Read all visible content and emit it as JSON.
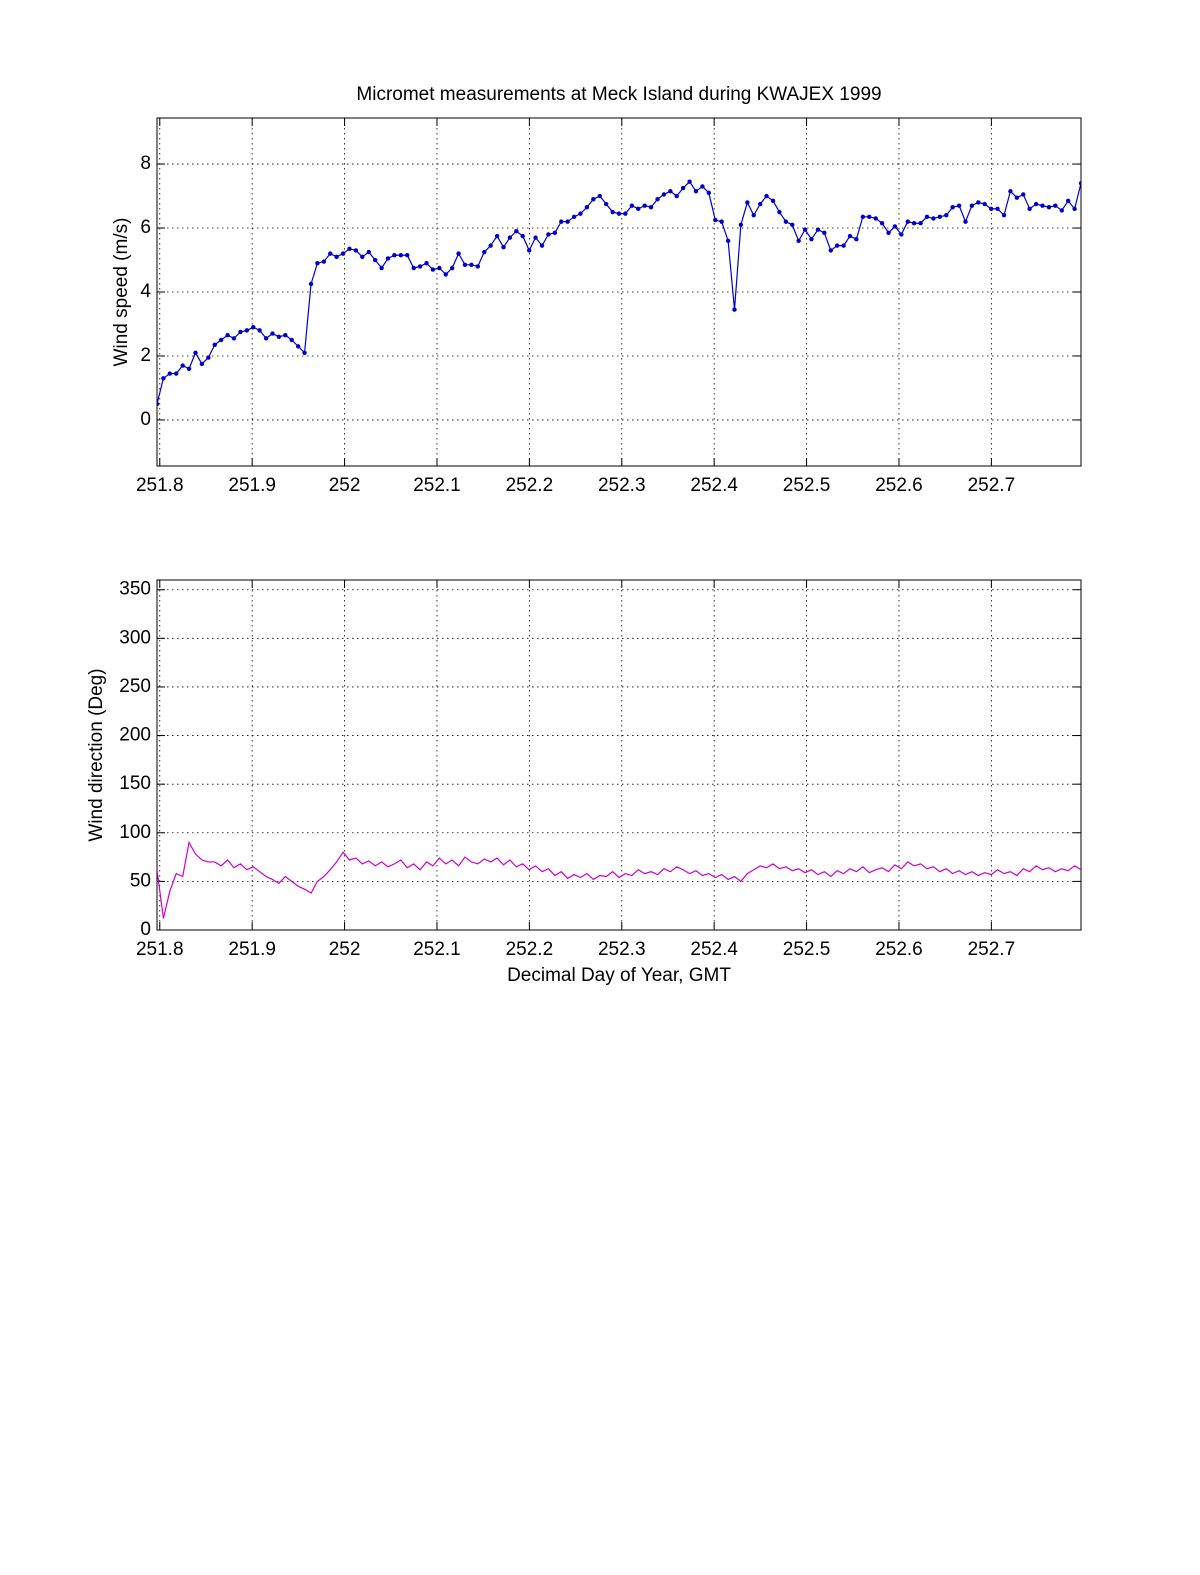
{
  "chart_data": [
    {
      "type": "line",
      "title": "Micromet measurements at Meck Island during KWAJEX 1999",
      "ylabel": "Wind speed (m/s)",
      "x": [
        251.797,
        251.8039,
        251.8109,
        251.8178,
        251.8248,
        251.8317,
        251.8387,
        251.8456,
        251.8526,
        251.8595,
        251.8664,
        251.8734,
        251.8803,
        251.8873,
        251.8942,
        251.9012,
        251.9081,
        251.9151,
        251.922,
        251.9289,
        251.9359,
        251.9428,
        251.9498,
        251.9567,
        251.9637,
        251.9706,
        251.9776,
        251.9845,
        251.9914,
        251.9984,
        252.0053,
        252.0123,
        252.0192,
        252.0262,
        252.0331,
        252.0401,
        252.047,
        252.0539,
        252.0609,
        252.0678,
        252.0748,
        252.0817,
        252.0887,
        252.0956,
        252.1026,
        252.1095,
        252.1164,
        252.1234,
        252.1303,
        252.1373,
        252.1442,
        252.1512,
        252.1581,
        252.1651,
        252.172,
        252.1789,
        252.1859,
        252.1928,
        252.1998,
        252.2067,
        252.2137,
        252.2206,
        252.2276,
        252.2345,
        252.2414,
        252.2484,
        252.2553,
        252.2623,
        252.2692,
        252.2762,
        252.2831,
        252.2901,
        252.297,
        252.3039,
        252.3109,
        252.3178,
        252.3248,
        252.3317,
        252.3387,
        252.3456,
        252.3526,
        252.3595,
        252.3664,
        252.3734,
        252.3803,
        252.3873,
        252.3942,
        252.4012,
        252.4081,
        252.4151,
        252.422,
        252.4289,
        252.4359,
        252.4428,
        252.4498,
        252.4567,
        252.4637,
        252.4706,
        252.4776,
        252.4845,
        252.4914,
        252.4984,
        252.5053,
        252.5123,
        252.5192,
        252.5262,
        252.5331,
        252.5401,
        252.547,
        252.5539,
        252.5609,
        252.5678,
        252.5748,
        252.5817,
        252.5887,
        252.5956,
        252.6026,
        252.6095,
        252.6164,
        252.6234,
        252.6303,
        252.6373,
        252.6442,
        252.6512,
        252.6581,
        252.6651,
        252.672,
        252.6789,
        252.6859,
        252.6928,
        252.6998,
        252.7067,
        252.7137,
        252.7206,
        252.7276,
        252.7345,
        252.7414,
        252.7484,
        252.7553,
        252.7623,
        252.7692,
        252.7762,
        252.7831,
        252.7901,
        252.797
      ],
      "values": [
        0.5,
        1.3,
        1.45,
        1.45,
        1.7,
        1.6,
        2.1,
        1.75,
        1.95,
        2.35,
        2.5,
        2.65,
        2.55,
        2.75,
        2.8,
        2.9,
        2.8,
        2.55,
        2.7,
        2.6,
        2.65,
        2.5,
        2.3,
        2.1,
        4.25,
        4.9,
        4.95,
        5.2,
        5.1,
        5.2,
        5.35,
        5.3,
        5.1,
        5.25,
        5.0,
        4.75,
        5.05,
        5.15,
        5.15,
        5.15,
        4.75,
        4.8,
        4.9,
        4.7,
        4.75,
        4.55,
        4.75,
        5.2,
        4.85,
        4.85,
        4.8,
        5.25,
        5.45,
        5.75,
        5.4,
        5.7,
        5.9,
        5.75,
        5.3,
        5.7,
        5.45,
        5.8,
        5.85,
        6.2,
        6.2,
        6.35,
        6.45,
        6.65,
        6.9,
        7.0,
        6.75,
        6.5,
        6.45,
        6.45,
        6.7,
        6.6,
        6.7,
        6.65,
        6.9,
        7.05,
        7.15,
        7.0,
        7.25,
        7.45,
        7.15,
        7.3,
        7.1,
        6.25,
        6.2,
        5.6,
        3.45,
        6.1,
        6.8,
        6.4,
        6.75,
        7.0,
        6.85,
        6.5,
        6.2,
        6.1,
        5.6,
        5.95,
        5.65,
        5.95,
        5.85,
        5.3,
        5.45,
        5.45,
        5.75,
        5.65,
        6.35,
        6.35,
        6.3,
        6.15,
        5.85,
        6.05,
        5.8,
        6.2,
        6.15,
        6.15,
        6.35,
        6.3,
        6.35,
        6.4,
        6.65,
        6.7,
        6.2,
        6.7,
        6.8,
        6.75,
        6.6,
        6.6,
        6.4,
        7.15,
        6.95,
        7.05,
        6.6,
        6.75,
        6.7,
        6.65,
        6.7,
        6.55,
        6.85,
        6.6,
        7.4
      ],
      "color": "#0000cc",
      "marker": "dot",
      "xlim": [
        251.797,
        252.797
      ],
      "xticks": [
        251.8,
        251.9,
        252,
        252.1,
        252.2,
        252.3,
        252.4,
        252.5,
        252.6,
        252.7
      ],
      "ylim": [
        -1.44,
        9.44
      ],
      "yticks": [
        0,
        2,
        4,
        6,
        8
      ],
      "grid": true
    },
    {
      "type": "line",
      "ylabel": "Wind direction (Deg)",
      "xlabel": "Decimal Day of Year, GMT",
      "x": [
        251.797,
        251.8039,
        251.8109,
        251.8178,
        251.8248,
        251.8317,
        251.8387,
        251.8456,
        251.8526,
        251.8595,
        251.8664,
        251.8734,
        251.8803,
        251.8873,
        251.8942,
        251.9012,
        251.9081,
        251.9151,
        251.922,
        251.9289,
        251.9359,
        251.9428,
        251.9498,
        251.9567,
        251.9637,
        251.9706,
        251.9776,
        251.9845,
        251.9914,
        251.9984,
        252.0053,
        252.0123,
        252.0192,
        252.0262,
        252.0331,
        252.0401,
        252.047,
        252.0539,
        252.0609,
        252.0678,
        252.0748,
        252.0817,
        252.0887,
        252.0956,
        252.1026,
        252.1095,
        252.1164,
        252.1234,
        252.1303,
        252.1373,
        252.1442,
        252.1512,
        252.1581,
        252.1651,
        252.172,
        252.1789,
        252.1859,
        252.1928,
        252.1998,
        252.2067,
        252.2137,
        252.2206,
        252.2276,
        252.2345,
        252.2414,
        252.2484,
        252.2553,
        252.2623,
        252.2692,
        252.2762,
        252.2831,
        252.2901,
        252.297,
        252.3039,
        252.3109,
        252.3178,
        252.3248,
        252.3317,
        252.3387,
        252.3456,
        252.3526,
        252.3595,
        252.3664,
        252.3734,
        252.3803,
        252.3873,
        252.3942,
        252.4012,
        252.4081,
        252.4151,
        252.422,
        252.4289,
        252.4359,
        252.4428,
        252.4498,
        252.4567,
        252.4637,
        252.4706,
        252.4776,
        252.4845,
        252.4914,
        252.4984,
        252.5053,
        252.5123,
        252.5192,
        252.5262,
        252.5331,
        252.5401,
        252.547,
        252.5539,
        252.5609,
        252.5678,
        252.5748,
        252.5817,
        252.5887,
        252.5956,
        252.6026,
        252.6095,
        252.6164,
        252.6234,
        252.6303,
        252.6373,
        252.6442,
        252.6512,
        252.6581,
        252.6651,
        252.672,
        252.6789,
        252.6859,
        252.6928,
        252.6998,
        252.7067,
        252.7137,
        252.7206,
        252.7276,
        252.7345,
        252.7414,
        252.7484,
        252.7553,
        252.7623,
        252.7692,
        252.7762,
        252.7831,
        252.7901,
        252.797
      ],
      "values": [
        62,
        12,
        40,
        58,
        55,
        90,
        78,
        72,
        70,
        70,
        66,
        72,
        64,
        68,
        62,
        65,
        60,
        55,
        52,
        48,
        55,
        50,
        45,
        42,
        38,
        50,
        55,
        62,
        70,
        80,
        72,
        74,
        68,
        71,
        66,
        70,
        65,
        68,
        72,
        64,
        68,
        62,
        70,
        66,
        74,
        68,
        72,
        66,
        75,
        70,
        68,
        73,
        70,
        74,
        67,
        72,
        65,
        68,
        62,
        66,
        60,
        63,
        56,
        60,
        53,
        57,
        54,
        58,
        52,
        56,
        55,
        60,
        54,
        58,
        56,
        62,
        58,
        60,
        57,
        63,
        60,
        65,
        62,
        58,
        61,
        56,
        58,
        54,
        57,
        52,
        55,
        50,
        58,
        62,
        66,
        64,
        68,
        63,
        65,
        61,
        63,
        59,
        62,
        57,
        60,
        55,
        61,
        58,
        63,
        60,
        65,
        59,
        62,
        64,
        60,
        67,
        63,
        70,
        66,
        68,
        63,
        65,
        60,
        63,
        58,
        61,
        57,
        60,
        56,
        59,
        57,
        62,
        58,
        60,
        56,
        63,
        60,
        66,
        62,
        64,
        60,
        63,
        61,
        66,
        62
      ],
      "color": "#cc00cc",
      "xlim": [
        251.797,
        252.797
      ],
      "xticks": [
        251.8,
        251.9,
        252,
        252.1,
        252.2,
        252.3,
        252.4,
        252.5,
        252.6,
        252.7
      ],
      "ylim": [
        0,
        360
      ],
      "yticks": [
        0,
        50,
        100,
        150,
        200,
        250,
        300,
        350
      ],
      "grid": true
    }
  ]
}
